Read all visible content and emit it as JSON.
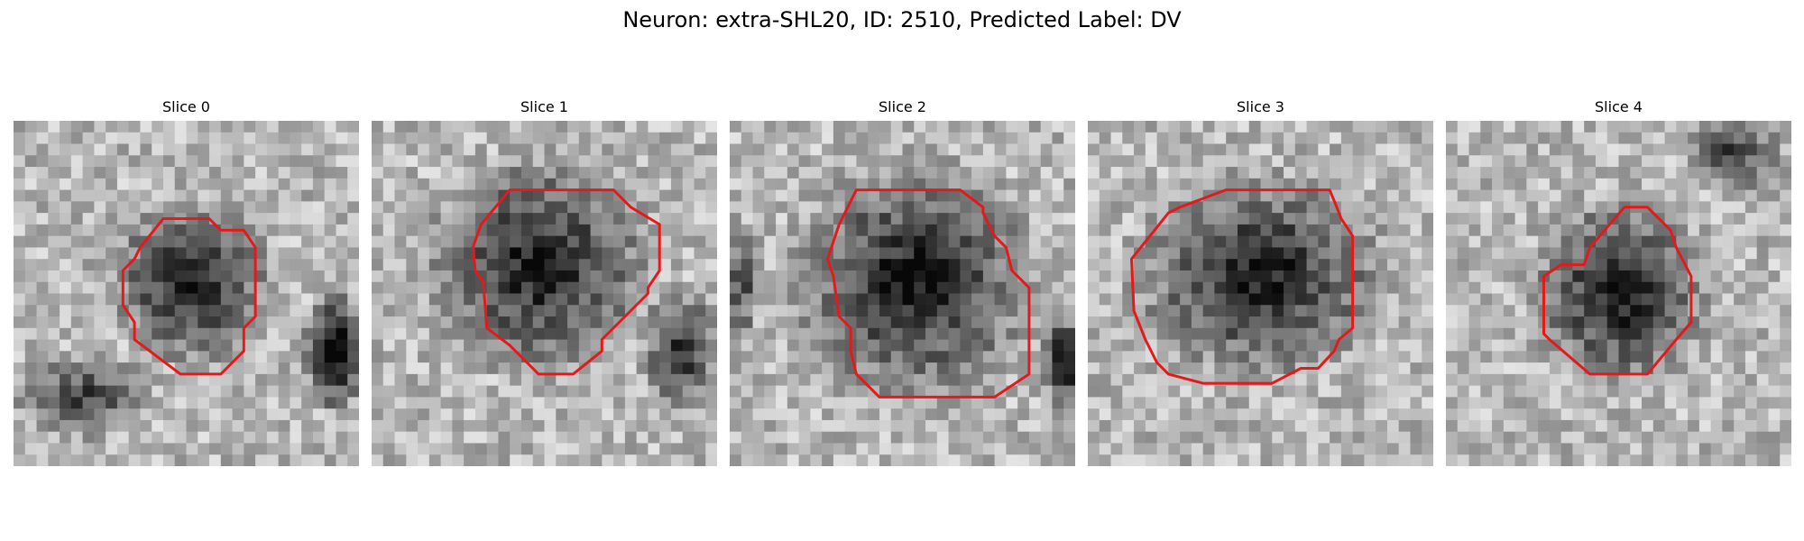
{
  "figure": {
    "title": "Neuron: extra-SHL20, ID: 2510, Predicted Label: DV"
  },
  "slices": [
    {
      "title": "Slice 0"
    },
    {
      "title": "Slice 1"
    },
    {
      "title": "Slice 2"
    },
    {
      "title": "Slice 3"
    },
    {
      "title": "Slice 4"
    }
  ],
  "colors": {
    "contour": "#e31a1c",
    "background": "#ffffff"
  }
}
